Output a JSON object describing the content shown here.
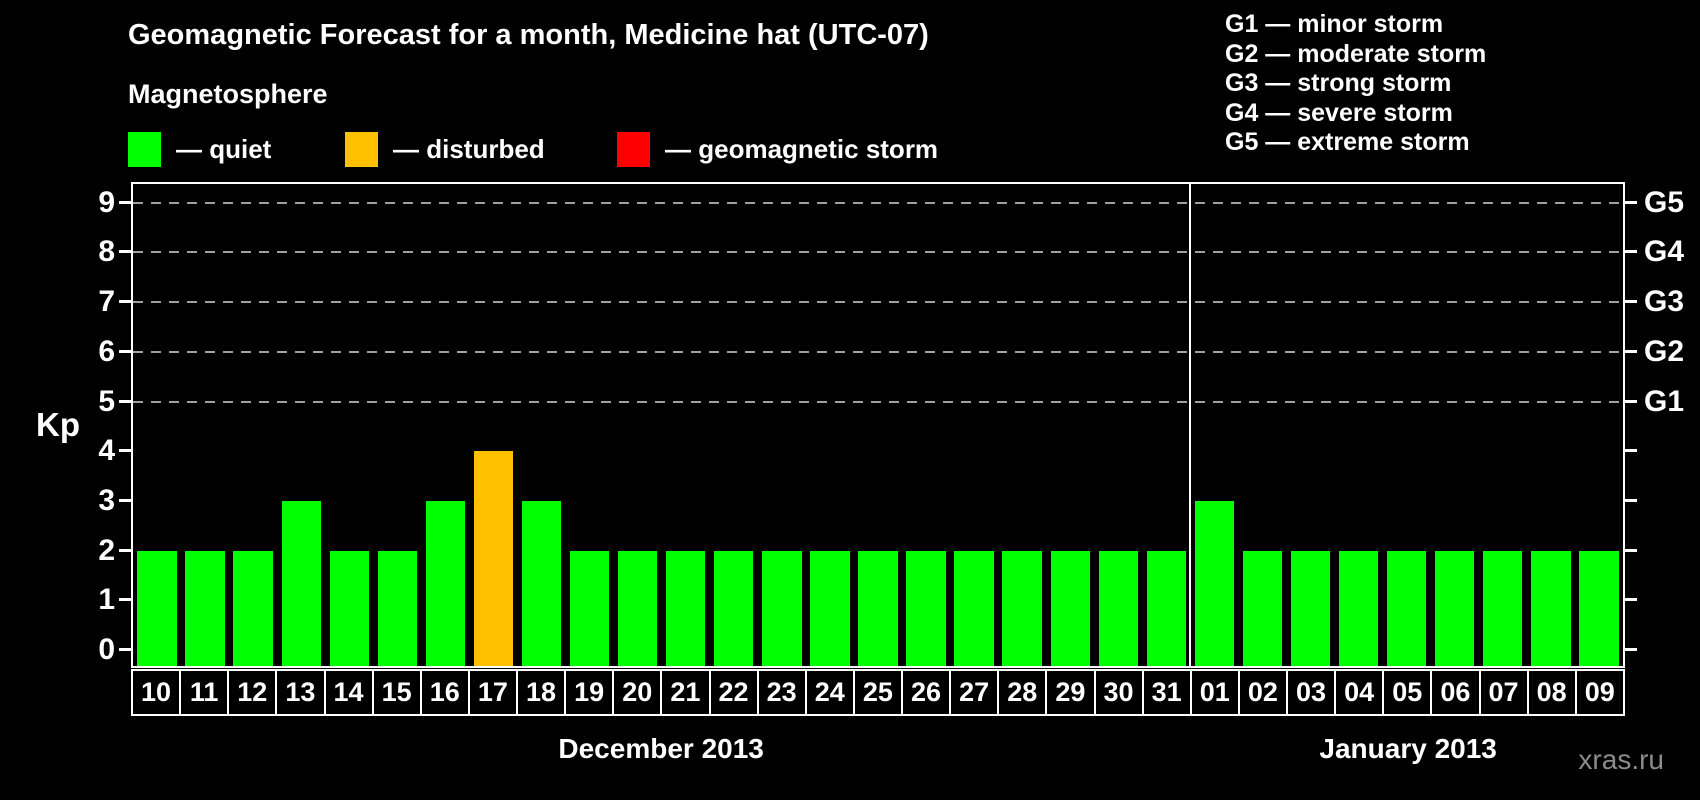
{
  "header": {
    "title": "Geomagnetic Forecast for a month, Medicine hat (UTC-07)"
  },
  "magnetosphere_legend": {
    "title": "Magnetosphere",
    "items": [
      {
        "status": "quiet",
        "label": "— quiet",
        "color": "#00ff00"
      },
      {
        "status": "disturbed",
        "label": "— disturbed",
        "color": "#ffc000"
      },
      {
        "status": "storm",
        "label": "— geomagnetic storm",
        "color": "#ff0000"
      }
    ]
  },
  "g_scale_legend": {
    "items": [
      "G1 — minor storm",
      "G2 — moderate storm",
      "G3 — strong storm",
      "G4 — severe storm",
      "G5 — extreme storm"
    ]
  },
  "watermark": "xras.ru",
  "chart_data": {
    "type": "bar",
    "title": "Geomagnetic Forecast for a month, Medicine hat (UTC-07)",
    "ylabel": "Kp",
    "ylim": [
      0,
      9
    ],
    "y_ticks": [
      0,
      1,
      2,
      3,
      4,
      5,
      6,
      7,
      8,
      9
    ],
    "grid": "dashed horizontal gridlines only at Kp 5-9",
    "gridline_values": [
      5,
      6,
      7,
      8,
      9
    ],
    "legend_position": "top-left",
    "right_axis": {
      "ticks": [
        5,
        6,
        7,
        8,
        9
      ],
      "labels": [
        "G1",
        "G2",
        "G3",
        "G4",
        "G5"
      ]
    },
    "categories": [
      "10",
      "11",
      "12",
      "13",
      "14",
      "15",
      "16",
      "17",
      "18",
      "19",
      "20",
      "21",
      "22",
      "23",
      "24",
      "25",
      "26",
      "27",
      "28",
      "29",
      "30",
      "31",
      "01",
      "02",
      "03",
      "04",
      "05",
      "06",
      "07",
      "08",
      "09"
    ],
    "values": [
      2,
      2,
      2,
      3,
      2,
      2,
      3,
      4,
      3,
      2,
      2,
      2,
      2,
      2,
      2,
      2,
      2,
      2,
      2,
      2,
      2,
      2,
      3,
      2,
      2,
      2,
      2,
      2,
      2,
      2,
      2
    ],
    "statuses": [
      "quiet",
      "quiet",
      "quiet",
      "quiet",
      "quiet",
      "quiet",
      "quiet",
      "disturbed",
      "quiet",
      "quiet",
      "quiet",
      "quiet",
      "quiet",
      "quiet",
      "quiet",
      "quiet",
      "quiet",
      "quiet",
      "quiet",
      "quiet",
      "quiet",
      "quiet",
      "quiet",
      "quiet",
      "quiet",
      "quiet",
      "quiet",
      "quiet",
      "quiet",
      "quiet",
      "quiet"
    ],
    "status_colors": {
      "quiet": "#00ff00",
      "disturbed": "#ffc000",
      "storm": "#ff0000"
    },
    "months": [
      {
        "label": "December 2013",
        "days": 22
      },
      {
        "label": "January 2013",
        "days": 9
      }
    ]
  }
}
